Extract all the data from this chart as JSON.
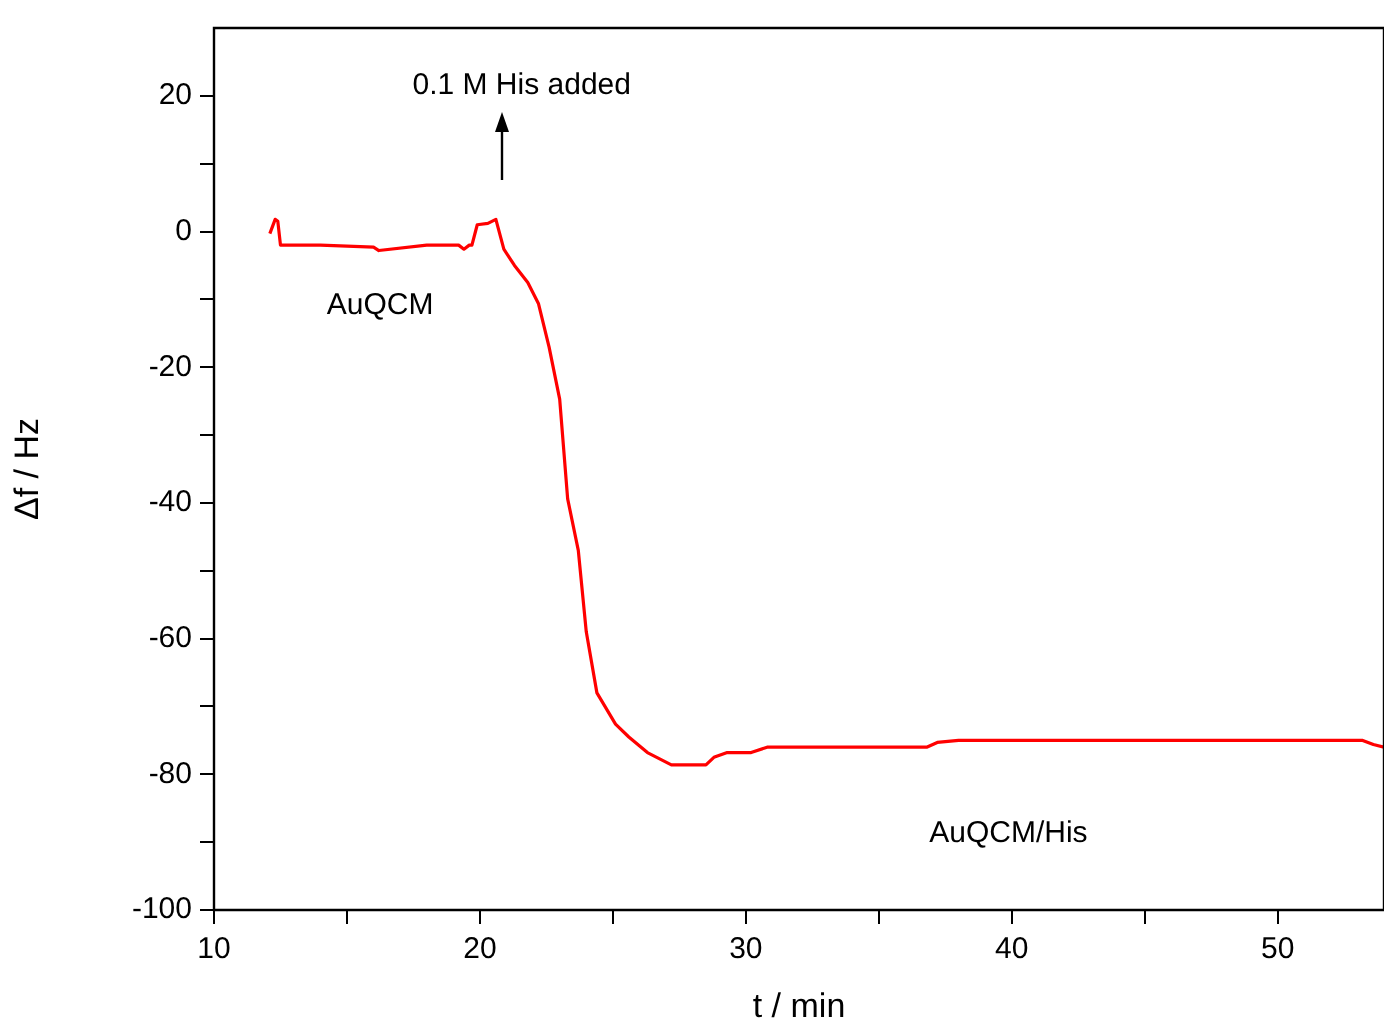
{
  "chart_data": {
    "type": "line",
    "xlabel": "t / min",
    "ylabel": "Δf / Hz",
    "xlim": [
      10,
      54
    ],
    "ylim": [
      -100,
      30
    ],
    "xticks": [
      10,
      {
        "value": 15,
        "label": null
      },
      20,
      {
        "value": 25,
        "label": null
      },
      30,
      {
        "value": 35,
        "label": null
      },
      40,
      {
        "value": 45,
        "label": null
      },
      50
    ],
    "yticks": [
      -100,
      {
        "value": -90,
        "label": null
      },
      -80,
      {
        "value": -70,
        "label": null
      },
      -60,
      {
        "value": -50,
        "label": null
      },
      -40,
      {
        "value": -30,
        "label": null
      },
      -20,
      {
        "value": -10,
        "label": null
      },
      0,
      {
        "value": 10,
        "label": null
      },
      20
    ],
    "grid": false,
    "legend": false,
    "marker": "none",
    "line_style": "solid",
    "annotations": [
      "0.1 M His added",
      "AuQCM",
      "AuQCM/His"
    ],
    "series": [
      {
        "color": "#ff0000",
        "x": [
          12.1,
          12.3,
          12.4,
          12.5,
          14,
          16,
          16.2,
          18,
          19.2,
          19.4,
          19.6,
          19.7,
          19.9,
          20.3,
          20.6,
          20.9,
          21.3,
          21.8,
          22.2,
          22.6,
          23.0,
          23.3,
          23.7,
          24.0,
          24.4,
          25.1,
          25.6,
          26.3,
          27.2,
          28.5,
          28.8,
          29.3,
          30.2,
          30.8,
          33,
          36.8,
          37.2,
          38,
          40,
          45,
          50,
          53.2,
          53.6,
          54
        ],
        "values": [
          -0.3,
          1.8,
          1.5,
          -2,
          -2,
          -2.3,
          -2.8,
          -2,
          -2,
          -2.6,
          -2,
          -2,
          1,
          1.2,
          1.8,
          -2.6,
          -5,
          -7.5,
          -10.6,
          -17,
          -24.7,
          -39.4,
          -47,
          -59,
          -68,
          -72.6,
          -74.5,
          -76.8,
          -78.6,
          -78.6,
          -77.5,
          -76.8,
          -76.8,
          -76,
          -76,
          -76,
          -75.3,
          -75,
          -75,
          -75,
          -75,
          -75,
          -75.6,
          -76
        ]
      }
    ]
  }
}
